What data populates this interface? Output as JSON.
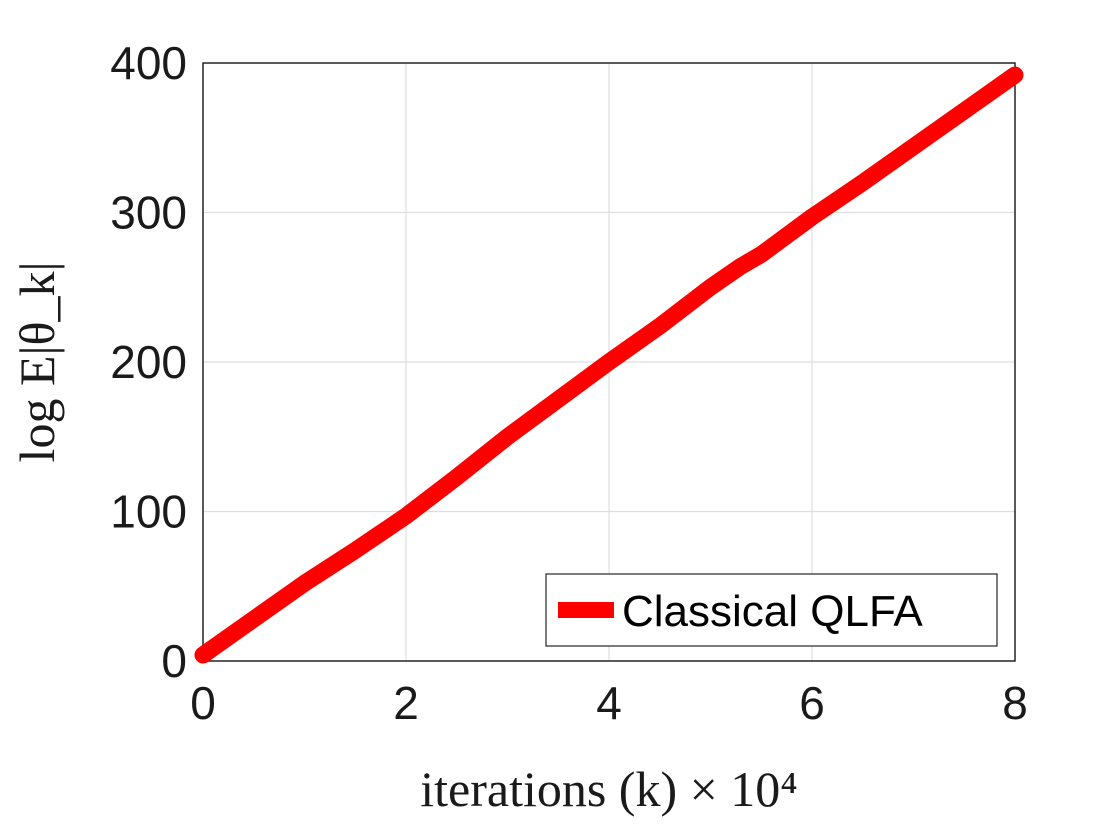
{
  "chart_data": {
    "type": "line",
    "title": "",
    "xlabel": "iterations (k) × 10⁴",
    "ylabel": "log E|θ_k|",
    "xlim": [
      0,
      8
    ],
    "ylim": [
      0,
      400
    ],
    "x_ticks": [
      0,
      2,
      4,
      6,
      8
    ],
    "y_ticks": [
      0,
      100,
      200,
      300,
      400
    ],
    "x_tick_labels": [
      "0",
      "2",
      "4",
      "6",
      "8"
    ],
    "y_tick_labels": [
      "0",
      "100",
      "200",
      "300",
      "400"
    ],
    "grid": true,
    "legend_position": "bottom-right",
    "series": [
      {
        "name": "Classical QLFA",
        "color": "#ff0000",
        "x": [
          0,
          0.5,
          1,
          1.5,
          2,
          2.5,
          3,
          3.5,
          4,
          4.5,
          5,
          5.3,
          5.5,
          6,
          6.5,
          7,
          7.5,
          8
        ],
        "y": [
          4,
          28,
          52,
          74,
          97,
          123,
          150,
          175,
          200,
          224,
          250,
          264,
          272,
          297,
          320,
          344,
          368,
          392
        ]
      }
    ]
  }
}
